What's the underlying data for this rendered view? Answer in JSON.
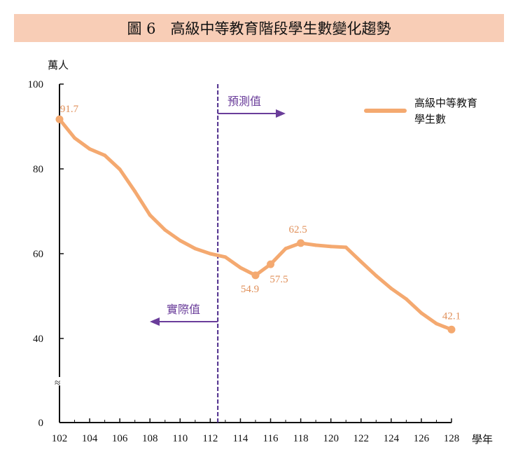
{
  "title": "圖 6　高級中等教育階段學生數變化趨勢",
  "chart_data": {
    "type": "line",
    "title": "圖 6　高級中等教育階段學生數變化趨勢",
    "ylabel": "萬人",
    "xlabel": "學年",
    "ylim": [
      0,
      100
    ],
    "y_axis_break": "≈",
    "yticks": [
      "0",
      "40",
      "60",
      "80",
      "100"
    ],
    "xticks": [
      "102",
      "104",
      "106",
      "108",
      "110",
      "112",
      "114",
      "116",
      "118",
      "120",
      "122",
      "124",
      "126",
      "128"
    ],
    "legend": {
      "position": "top-right",
      "label_lines": [
        "高級中等教育",
        "學生數"
      ]
    },
    "color": "#f4a970",
    "divider_year": 112.5,
    "annotations": {
      "forecast": "預測值",
      "actual": "實際值"
    },
    "series": [
      {
        "name": "高級中等教育學生數",
        "x": [
          102,
          103,
          104,
          105,
          106,
          107,
          108,
          109,
          110,
          111,
          112,
          113,
          114,
          115,
          116,
          117,
          118,
          119,
          120,
          121,
          122,
          123,
          124,
          125,
          126,
          127,
          128
        ],
        "values": [
          91.7,
          87.3,
          84.7,
          83.2,
          79.9,
          74.7,
          69.1,
          65.6,
          63.1,
          61.2,
          60.0,
          59.2,
          56.7,
          54.9,
          57.5,
          61.2,
          62.5,
          62.0,
          61.7,
          61.5,
          58.1,
          54.8,
          51.8,
          49.3,
          46.0,
          43.5,
          42.1
        ]
      }
    ],
    "data_labels": [
      {
        "x": 102,
        "text": "91.7"
      },
      {
        "x": 115,
        "text": "54.9"
      },
      {
        "x": 116,
        "text": "57.5"
      },
      {
        "x": 118,
        "text": "62.5"
      },
      {
        "x": 128,
        "text": "42.1"
      }
    ]
  }
}
